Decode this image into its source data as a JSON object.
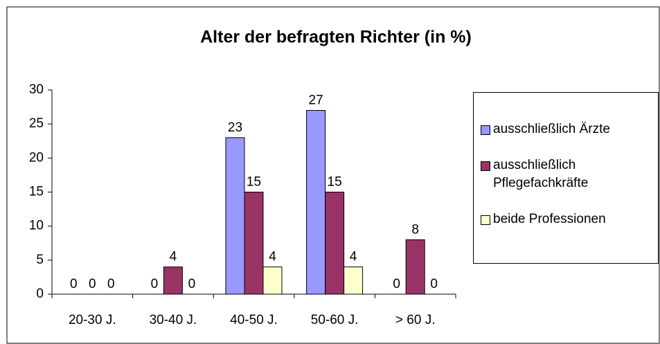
{
  "chart_data": {
    "type": "bar",
    "title": "Alter der befragten Richter (in %)",
    "categories": [
      "20-30 J.",
      "30-40 J.",
      "40-50 J.",
      "50-60 J.",
      "> 60 J."
    ],
    "series": [
      {
        "name": "ausschließlich Ärzte",
        "color": "#9999ff",
        "values": [
          0,
          0,
          23,
          27,
          0
        ]
      },
      {
        "name": "ausschließlich Pflegefachkräfte",
        "color": "#993366",
        "values": [
          0,
          4,
          15,
          15,
          8
        ]
      },
      {
        "name": "beide Professionen",
        "color": "#ffffcc",
        "values": [
          0,
          0,
          4,
          4,
          0
        ]
      }
    ],
    "ylim": [
      0,
      30
    ],
    "yticks": [
      0,
      5,
      10,
      15,
      20,
      25,
      30
    ],
    "grid": false,
    "legend": "right"
  }
}
